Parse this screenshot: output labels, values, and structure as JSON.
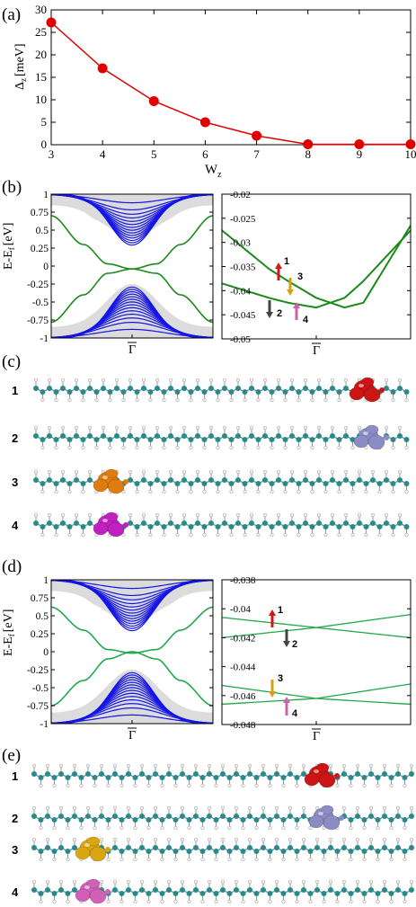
{
  "panel_labels": [
    "(a)",
    "(b)",
    "(c)",
    "(d)",
    "(e)"
  ],
  "panel_a": {
    "ylabel_main": "Δ",
    "ylabel_sub": "z",
    "ylabel_unit": "[meV]",
    "xlabel_main": "W",
    "xlabel_sub": "z",
    "xticks": [
      "3",
      "4",
      "5",
      "6",
      "7",
      "8",
      "9",
      "10"
    ],
    "yticks": [
      "0",
      "5",
      "10",
      "15",
      "20",
      "25",
      "30"
    ]
  },
  "panel_b": {
    "ylabel_main": "E-E",
    "ylabel_sub": "f",
    "ylabel_unit": "[eV]",
    "left_yticks": [
      "1",
      "0.75",
      "0.5",
      "0.25",
      "0",
      "-0.25",
      "-0.5",
      "-0.75",
      "-1"
    ],
    "right_yticks": [
      "-0.02",
      "-0.025",
      "-0.03",
      "-0.035",
      "-0.04",
      "-0.045",
      "-0.05"
    ],
    "xtick": "Γ",
    "state_labels": [
      "1",
      "2",
      "3",
      "4"
    ]
  },
  "panel_c": {
    "row_labels": [
      "1",
      "2",
      "3",
      "4"
    ]
  },
  "panel_d": {
    "ylabel_main": "E-E",
    "ylabel_sub": "f",
    "ylabel_unit": "[eV]",
    "left_yticks": [
      "1",
      "0.75",
      "0.5",
      "0.25",
      "0",
      "-0.25",
      "-0.5",
      "-0.75",
      "-1"
    ],
    "right_yticks": [
      "-0.038",
      "-0.04",
      "-0.042",
      "-0.044",
      "-0.046",
      "-0.048"
    ],
    "xtick": "Γ",
    "state_labels": [
      "1",
      "2",
      "3",
      "4"
    ]
  },
  "panel_e": {
    "row_labels": [
      "1",
      "2",
      "3",
      "4"
    ]
  },
  "colors": {
    "curve_red": "#e00000",
    "bulk_blue": "#1515e6",
    "edge_green_b": "#1a8a1a",
    "edge_green_d": "#21a84a",
    "shade": "#dcdcdc",
    "orbital_red": "#cc1515",
    "orbital_lavender": "#8c8cc4",
    "orbital_orange": "#e07b10",
    "orbital_magenta": "#c020c0",
    "orbital_gold": "#d9a510",
    "orbital_pink": "#d060b8",
    "atom_teal": "#2a8a8a"
  },
  "chart_data": [
    {
      "type": "line",
      "panel": "(a)",
      "xlabel": "Wz",
      "ylabel": "Δz [meV]",
      "x": [
        3,
        4,
        5,
        6,
        7,
        8,
        9,
        10
      ],
      "y": [
        27.2,
        17.0,
        9.7,
        5.0,
        2.0,
        0.1,
        0.1,
        0.1
      ],
      "xlim": [
        3,
        10
      ],
      "ylim": [
        0,
        30
      ],
      "markers": true,
      "grid": false
    },
    {
      "type": "line",
      "panel": "(b) left",
      "ylabel": "E-Ef [eV]",
      "xtick": "Γ",
      "ylim": [
        -1,
        1
      ],
      "description_series": [
        "bulk bands (blue)",
        "edge bands (green)"
      ],
      "edge_bands": [
        {
          "x": [
            -1,
            -0.6,
            -0.3,
            0,
            0.3,
            0.6,
            1
          ],
          "y": [
            -0.78,
            -0.4,
            -0.1,
            -0.04,
            -0.1,
            -0.4,
            -0.78
          ]
        },
        {
          "x": [
            -1,
            -0.6,
            -0.3,
            0,
            0.3,
            0.6,
            1
          ],
          "y": [
            0.7,
            0.3,
            0.03,
            -0.04,
            0.03,
            0.3,
            0.7
          ]
        }
      ]
    },
    {
      "type": "line",
      "panel": "(b) right",
      "xtick": "Γ",
      "ylim": [
        -0.05,
        -0.02
      ],
      "series": [
        {
          "x": [
            -1,
            -0.5,
            -0.3,
            0,
            0.3,
            0.5,
            1
          ],
          "y": [
            -0.0275,
            -0.0355,
            -0.038,
            -0.0415,
            -0.0435,
            -0.0425,
            -0.0265
          ]
        },
        {
          "x": [
            -1,
            -0.5,
            -0.3,
            0,
            0.3,
            0.5,
            1
          ],
          "y": [
            -0.0385,
            -0.0415,
            -0.0425,
            -0.0435,
            -0.0415,
            -0.038,
            -0.0275
          ]
        }
      ]
    },
    {
      "type": "line",
      "panel": "(d) left",
      "ylabel": "E-Ef [eV]",
      "xtick": "Γ",
      "ylim": [
        -1,
        1
      ],
      "edge_bands": [
        {
          "x": [
            -1,
            -0.6,
            -0.3,
            0,
            0.3,
            0.6,
            1
          ],
          "y": [
            -0.75,
            -0.4,
            -0.1,
            0.0,
            -0.1,
            -0.4,
            -0.75
          ]
        },
        {
          "x": [
            -1,
            -0.6,
            -0.3,
            0,
            0.3,
            0.6,
            1
          ],
          "y": [
            0.62,
            0.3,
            0.03,
            -0.02,
            0.03,
            0.3,
            0.62
          ]
        }
      ]
    },
    {
      "type": "line",
      "panel": "(d) right",
      "xtick": "Γ",
      "ylim": [
        -0.048,
        -0.038
      ],
      "series": [
        {
          "x": [
            -1,
            0,
            1
          ],
          "y": [
            -0.042,
            -0.0413,
            -0.0404
          ]
        },
        {
          "x": [
            -1,
            0,
            1
          ],
          "y": [
            -0.0406,
            -0.0413,
            -0.042
          ]
        },
        {
          "x": [
            -1,
            0,
            1
          ],
          "y": [
            -0.0466,
            -0.0462,
            -0.0452
          ]
        },
        {
          "x": [
            -1,
            0,
            1
          ],
          "y": [
            -0.0453,
            -0.0462,
            -0.0466
          ]
        }
      ]
    }
  ]
}
